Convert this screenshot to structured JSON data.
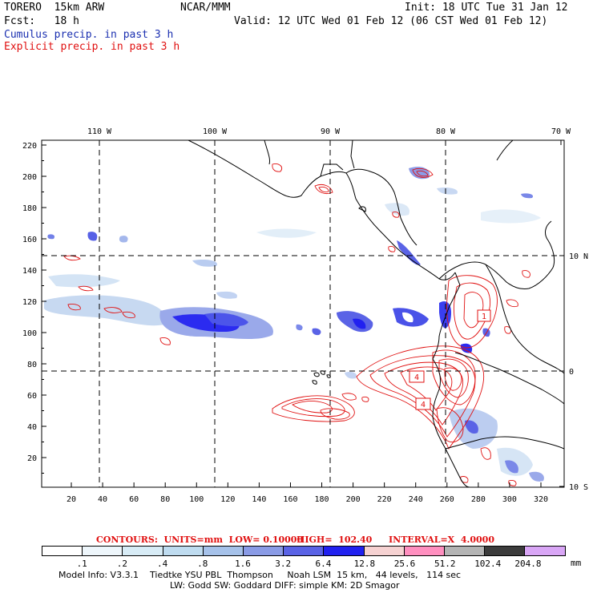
{
  "header": {
    "model": "TORERO  15km ARW",
    "org": "NCAR/MMM",
    "init": "Init: 18 UTC Tue 31 Jan 12",
    "fcst": "Fcst:   18 h",
    "valid": "Valid: 12 UTC Wed 01 Feb 12 (06 CST Wed 01 Feb 12)",
    "cumulus": "Cumulus precip. in past 3 h",
    "explicit": "Explicit precip. in past 3 h"
  },
  "axes": {
    "top_lon": [
      "110 W",
      "100 W",
      "90 W",
      "80 W",
      "70 W"
    ],
    "right_lat": [
      "10 N",
      "0",
      "10 S"
    ],
    "left_y": [
      "220",
      "200",
      "180",
      "160",
      "140",
      "120",
      "100",
      "80",
      "60",
      "40",
      "20"
    ],
    "bottom_x": [
      "20",
      "40",
      "60",
      "80",
      "100",
      "120",
      "140",
      "160",
      "180",
      "200",
      "220",
      "240",
      "260",
      "280",
      "300",
      "320"
    ]
  },
  "contours_line": {
    "label": "CONTOURS:  UNITS=mm  LOW= 0.10000",
    "high": "HIGH=  102.40",
    "interval": "INTERVAL=X  4.0000"
  },
  "colorbar": {
    "labels": [
      ".1",
      ".2",
      ".4",
      ".8",
      "1.6",
      "3.2",
      "6.4",
      "12.8",
      "25.6",
      "51.2",
      "102.4",
      "204.8"
    ],
    "unit": "mm",
    "colors": [
      "#ffffff",
      "#eef6fb",
      "#d8ecf6",
      "#bfdcf0",
      "#a6c2ea",
      "#8a9be6",
      "#5a63e6",
      "#2121f0",
      "#f6d2d2",
      "#ff8fbf",
      "#b4b4b4",
      "#3c3c3c",
      "#d9a6f6"
    ]
  },
  "contour_labels": [
    "1",
    "4",
    "4"
  ],
  "model_info": {
    "line1": "Model Info: V3.3.1    Tiedtke YSU PBL  Thompson     Noah LSM  15 km,   44 levels,   114 sec",
    "line2": "LW: Godd SW: Goddard DIFF: simple KM: 2D Smagor"
  }
}
